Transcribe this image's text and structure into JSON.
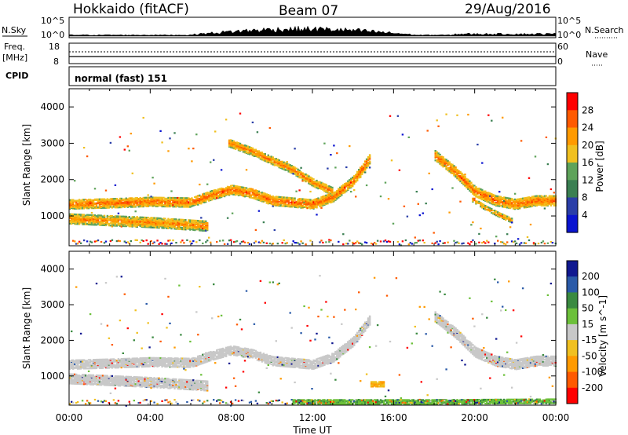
{
  "header": {
    "station": "Hokkaido (fitACF)",
    "beam": "Beam 07",
    "date": "29/Aug/2016"
  },
  "top_panels": {
    "nsky_label": "N.Sky",
    "nsky_top": "10^5",
    "nsky_bottom": "10^0",
    "nsearch_label": "N.Search",
    "nsearch_top": "10^5",
    "nsearch_bottom": "10^0",
    "freq_label": "Freq.",
    "freq_unit": "[MHz]",
    "freq_top": "18",
    "freq_bottom": "8",
    "nave_label": "Nave",
    "nave_top": "60",
    "nave_bottom": "0",
    "cpid_label": "CPID",
    "cpid_value": "normal (fast) 151"
  },
  "colors": {
    "power": [
      "#0a14d0",
      "#2a3ea8",
      "#3a7f52",
      "#5ea35a",
      "#f0c020",
      "#ff9a00",
      "#ff5a00",
      "#ff0000"
    ],
    "velocity": [
      "#ff0000",
      "#ff5a00",
      "#ff9a00",
      "#f0c020",
      "#c8c8c8",
      "#6cc03a",
      "#3a8a40",
      "#2a5aa8",
      "#101890"
    ],
    "ground_scatter": "#c8c8c8"
  },
  "chart_data": [
    {
      "type": "heatmap",
      "title": "Power",
      "xlabel": "Time UT",
      "ylabel": "Slant Range [km]",
      "x_ticks": [
        "00:00",
        "04:00",
        "08:00",
        "12:00",
        "16:00",
        "20:00",
        "00:00"
      ],
      "y_ticks": [
        "1000",
        "2000",
        "3000",
        "4000"
      ],
      "xlim_hours": [
        0,
        24
      ],
      "ylim_km": [
        180,
        4500
      ],
      "colorbar": {
        "label": "Power [dB]",
        "ticks": [
          "4",
          "8",
          "12",
          "16",
          "20",
          "24",
          "28"
        ],
        "range": [
          0,
          32
        ]
      },
      "features": [
        {
          "name": "band",
          "points": [
            [
              0,
              1350
            ],
            [
              2,
              1380
            ],
            [
              4,
              1420
            ],
            [
              6,
              1400
            ],
            [
              7,
              1600
            ],
            [
              8,
              1750
            ],
            [
              9,
              1650
            ],
            [
              10,
              1450
            ],
            [
              11,
              1400
            ],
            [
              12,
              1350
            ],
            [
              13,
              1550
            ],
            [
              14,
              2000
            ],
            [
              14.8,
              2600
            ]
          ],
          "thickness_km": 260,
          "power_db": 26
        },
        {
          "name": "lower band",
          "points": [
            [
              0,
              950
            ],
            [
              2,
              900
            ],
            [
              4,
              850
            ],
            [
              6,
              780
            ],
            [
              6.8,
              750
            ]
          ],
          "thickness_km": 280,
          "power_db": 24
        },
        {
          "name": "upper arc",
          "points": [
            [
              7.8,
              3050
            ],
            [
              9,
              2800
            ],
            [
              10,
              2550
            ],
            [
              11,
              2300
            ],
            [
              12,
              1950
            ],
            [
              13,
              1700
            ]
          ],
          "thickness_km": 220,
          "power_db": 25
        },
        {
          "name": "descending arc",
          "points": [
            [
              18,
              2700
            ],
            [
              19,
              2250
            ],
            [
              20,
              1700
            ],
            [
              21,
              1450
            ],
            [
              22,
              1350
            ],
            [
              23,
              1450
            ],
            [
              24,
              1450
            ]
          ],
          "thickness_km": 280,
          "power_db": 26
        },
        {
          "name": "spike",
          "points": [
            [
              19.8,
              1500
            ],
            [
              20.5,
              1250
            ],
            [
              21.2,
              1050
            ],
            [
              21.8,
              900
            ]
          ],
          "thickness_km": 120,
          "power_db": 24
        }
      ]
    },
    {
      "type": "heatmap",
      "title": "Velocity",
      "xlabel": "Time UT",
      "ylabel": "Slant Range [km]",
      "x_ticks": [
        "00:00",
        "04:00",
        "08:00",
        "12:00",
        "16:00",
        "20:00",
        "00:00"
      ],
      "y_ticks": [
        "1000",
        "2000",
        "3000",
        "4000"
      ],
      "xlim_hours": [
        0,
        24
      ],
      "ylim_km": [
        180,
        4500
      ],
      "colorbar": {
        "label": "Velocity [m s^-1]",
        "ticks": [
          "200",
          "100",
          "50",
          "15",
          "-15",
          "-50",
          "-100",
          "-200"
        ],
        "range": [
          -250,
          250
        ]
      },
      "features": [
        {
          "name": "ground scatter band",
          "points": [
            [
              0,
              1350
            ],
            [
              2,
              1380
            ],
            [
              4,
              1420
            ],
            [
              6,
              1400
            ],
            [
              7,
              1600
            ],
            [
              8,
              1750
            ],
            [
              9,
              1650
            ],
            [
              10,
              1450
            ],
            [
              11,
              1400
            ],
            [
              12,
              1350
            ],
            [
              13,
              1550
            ],
            [
              14,
              2000
            ],
            [
              14.8,
              2600
            ]
          ],
          "thickness_km": 260,
          "velocity": 0
        },
        {
          "name": "ground scatter lower",
          "points": [
            [
              0,
              950
            ],
            [
              2,
              900
            ],
            [
              4,
              850
            ],
            [
              6,
              780
            ],
            [
              6.8,
              750
            ]
          ],
          "thickness_km": 280,
          "velocity": 0
        },
        {
          "name": "ground scatter arc",
          "points": [
            [
              18,
              2700
            ],
            [
              19,
              2250
            ],
            [
              20,
              1700
            ],
            [
              21,
              1450
            ],
            [
              22,
              1350
            ],
            [
              23,
              1450
            ],
            [
              24,
              1450
            ]
          ],
          "thickness_km": 280,
          "velocity": 0
        },
        {
          "name": "negative patch",
          "points": [
            [
              14.8,
              800
            ],
            [
              15.5,
              800
            ]
          ],
          "thickness_km": 150,
          "velocity": -30
        },
        {
          "name": "near range green",
          "points": [
            [
              11,
              300
            ],
            [
              18,
              300
            ],
            [
              24,
              320
            ]
          ],
          "thickness_km": 120,
          "velocity": 40
        }
      ]
    }
  ]
}
